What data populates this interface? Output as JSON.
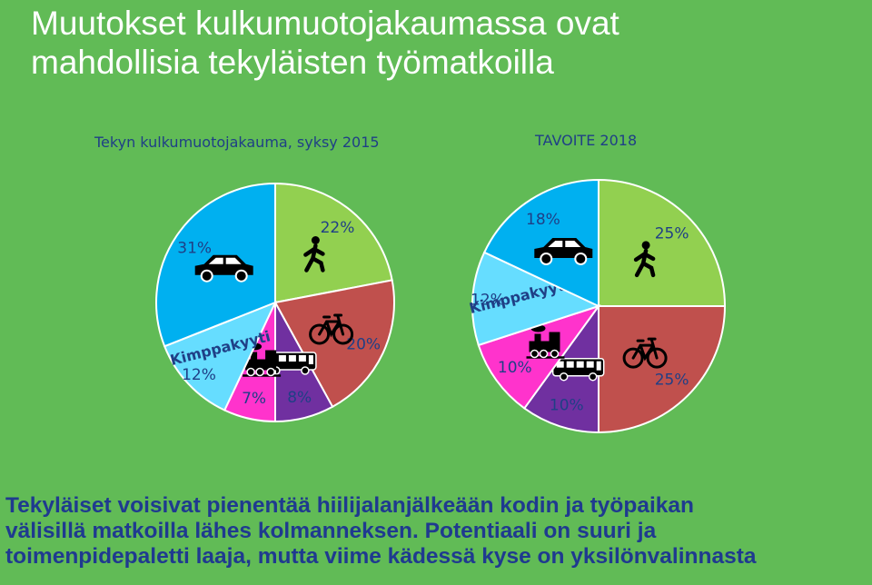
{
  "slide": {
    "title_line1": "Muutokset kulkumuotojakaumassa ovat",
    "title_line2": "mahdollisia tekyläisten työmatkoilla",
    "body_lines": [
      "Tekyläiset voisivat pienentää hiilijalanjälkeään  kodin ja työpaikan",
      "välisillä matkoilla lähes kolmanneksen. Potentiaali on suuri ja",
      "toimenpidepaletti laaja, mutta viime kädessä kyse on yksilönvalinnasta"
    ]
  },
  "chart_data": [
    {
      "type": "pie",
      "title": "Tekyn kulkumuotojakauma, syksy 2015",
      "slices": [
        {
          "mode": "walk",
          "icon": "walking-person-icon",
          "value": 22,
          "label": "22%",
          "color": "#92d050"
        },
        {
          "mode": "bike",
          "icon": "bicycle-icon",
          "value": 20,
          "label": "20%",
          "color": "#c0504d"
        },
        {
          "mode": "bus",
          "icon": "bus-icon",
          "value": 8,
          "label": "8%",
          "color": "#7030a0"
        },
        {
          "mode": "train",
          "icon": "train-icon",
          "value": 7,
          "label": "7%",
          "color": "#ff33cc"
        },
        {
          "mode": "carpool",
          "icon": "",
          "value": 12,
          "label": "12%",
          "color": "#66ddff",
          "tag": "Kimppakyyti"
        },
        {
          "mode": "car",
          "icon": "car-icon",
          "value": 31,
          "label": "31%",
          "color": "#00b0f0"
        }
      ]
    },
    {
      "type": "pie",
      "title": "TAVOITE 2018",
      "slices": [
        {
          "mode": "walk",
          "icon": "walking-person-icon",
          "value": 25,
          "label": "25%",
          "color": "#92d050"
        },
        {
          "mode": "bike",
          "icon": "bicycle-icon",
          "value": 25,
          "label": "25%",
          "color": "#c0504d"
        },
        {
          "mode": "bus",
          "icon": "bus-icon",
          "value": 10,
          "label": "10%",
          "color": "#7030a0"
        },
        {
          "mode": "train",
          "icon": "train-icon",
          "value": 10,
          "label": "10%",
          "color": "#ff33cc"
        },
        {
          "mode": "carpool",
          "icon": "",
          "value": 12,
          "label": "12%",
          "color": "#66ddff",
          "tag": "Kimppakyyti"
        },
        {
          "mode": "car",
          "icon": "car-icon",
          "value": 18,
          "label": "18%",
          "color": "#00b0f0"
        }
      ]
    }
  ]
}
